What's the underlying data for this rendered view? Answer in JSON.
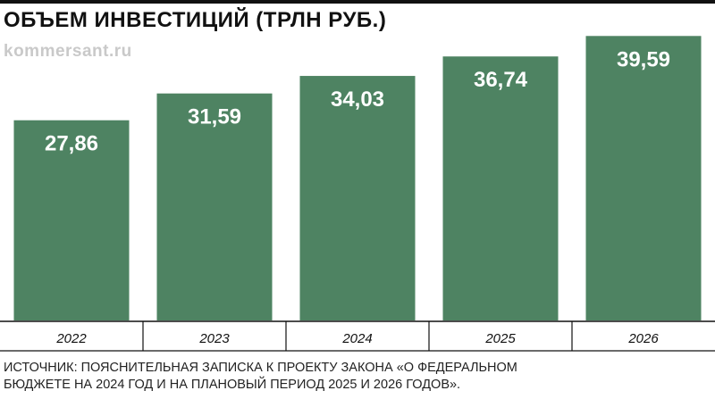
{
  "header": {
    "title": "ОБЪЕМ ИНВЕСТИЦИЙ (ТРЛН РУБ.)",
    "watermark": "kommersant.ru"
  },
  "chart_data": {
    "type": "bar",
    "title": "ОБЪЕМ ИНВЕСТИЦИЙ (ТРЛН РУБ.)",
    "categories": [
      "2022",
      "2023",
      "2024",
      "2025",
      "2026"
    ],
    "values": [
      27.86,
      31.59,
      34.03,
      36.74,
      39.59
    ],
    "value_labels": [
      "27,86",
      "31,59",
      "34,03",
      "36,74",
      "39,59"
    ],
    "xlabel": "",
    "ylabel": "",
    "ylim": [
      0,
      40
    ],
    "grid": false,
    "legend": "none",
    "bar_color": "#4e8362",
    "label_color": "#ffffff"
  },
  "footer": {
    "source_line1": "ИСТОЧНИК: ПОЯСНИТЕЛЬНАЯ ЗАПИСКА К ПРОЕКТУ ЗАКОНА «О ФЕДЕРАЛЬНОМ",
    "source_line2": "БЮДЖЕТЕ НА 2024 ГОД И НА ПЛАНОВЫЙ ПЕРИОД 2025 И 2026 ГОДОВ»."
  }
}
